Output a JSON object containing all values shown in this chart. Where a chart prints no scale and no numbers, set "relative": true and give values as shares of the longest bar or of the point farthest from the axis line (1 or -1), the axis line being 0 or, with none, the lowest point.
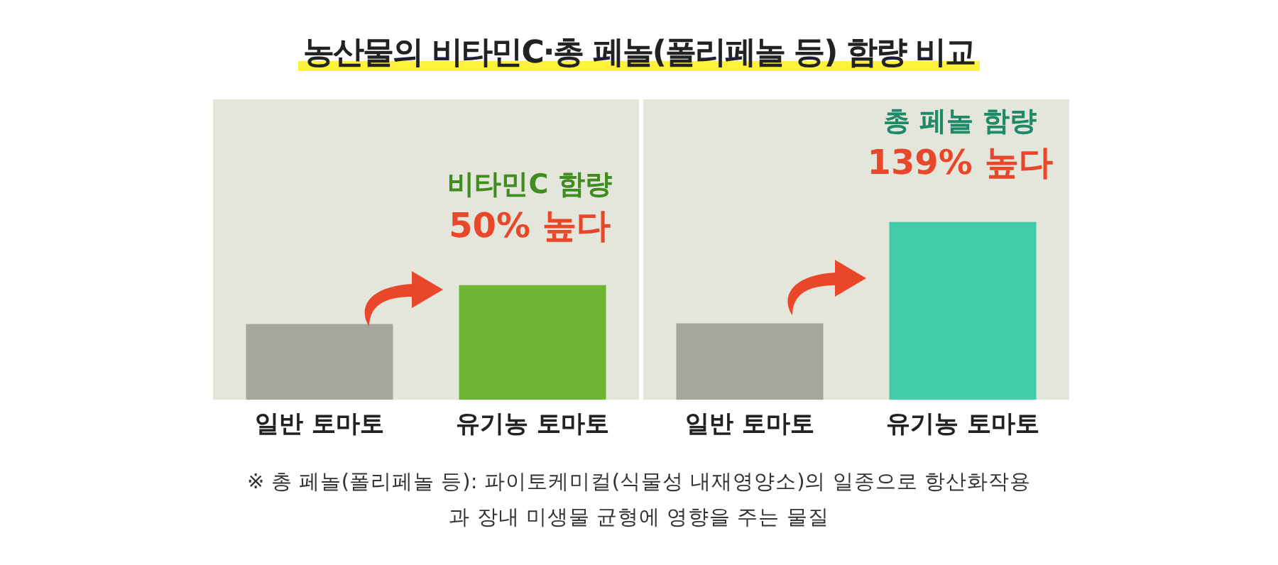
{
  "chart_data": [
    {
      "type": "other",
      "title": "농산물의 비타민C·총 페놀(폴리페놀 등) 함량 비교",
      "annotations": [
        "※ 총 페놀(폴리페놀 등): 파이토케미컬(식물성 내재영양소)의 일종으로 항산화작용과 장내 미생물 균형에 영향을 주는 물질"
      ]
    },
    {
      "type": "bar",
      "relative": true,
      "categories": [
        "일반 토마토",
        "유기농 토마토"
      ],
      "values": [
        0.66,
        1
      ],
      "colors": [
        "#a5a69e",
        "#6db535"
      ],
      "annotations": [
        "비타민C 함량",
        "50% 높다"
      ]
    },
    {
      "type": "bar",
      "relative": true,
      "categories": [
        "일반 토마토",
        "유기농 토마토"
      ],
      "values": [
        0.43,
        1
      ],
      "colors": [
        "#a5a69e",
        "#40cca8"
      ],
      "annotations": [
        "총 페놀 함량",
        "139% 높다"
      ]
    }
  ]
}
